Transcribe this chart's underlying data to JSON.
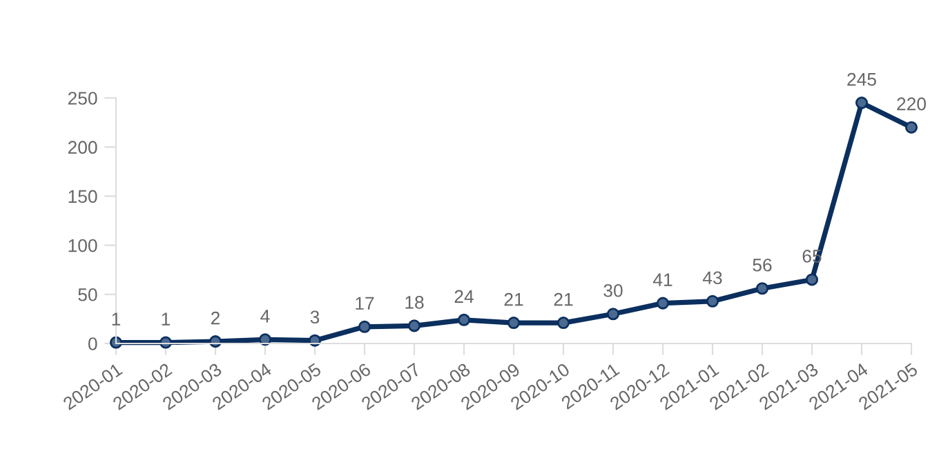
{
  "chart_data": {
    "type": "line",
    "categories": [
      "2020-01",
      "2020-02",
      "2020-03",
      "2020-04",
      "2020-05",
      "2020-06",
      "2020-07",
      "2020-08",
      "2020-09",
      "2020-10",
      "2020-11",
      "2020-12",
      "2021-01",
      "2021-02",
      "2021-03",
      "2021-04",
      "2021-05"
    ],
    "series": [
      {
        "color": "#0b2f5e",
        "values": [
          1,
          1,
          2,
          4,
          3,
          17,
          18,
          24,
          21,
          21,
          30,
          41,
          43,
          56,
          65,
          245,
          220
        ]
      }
    ],
    "ylim": [
      0,
      250
    ],
    "yticks": [
      0,
      50,
      100,
      150,
      200,
      250
    ],
    "grid": false,
    "marker": "circle",
    "line_style": "solid",
    "data_labels": true
  }
}
